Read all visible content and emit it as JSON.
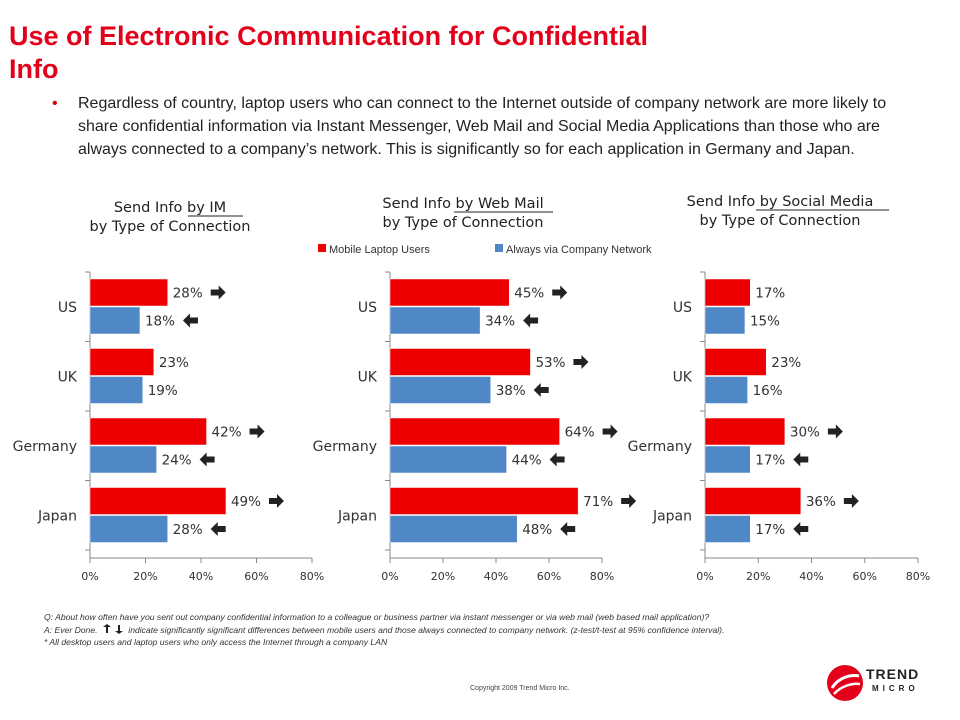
{
  "title": "Use of Electronic Communication for Confidential Info",
  "bullet": "Regardless of country, laptop users who can connect to the Internet outside of company network are more likely to share confidential information via Instant Messenger, Web Mail and Social Media Applications than those who are always connected to a company’s network. This is significantly so for each application in Germany and Japan.",
  "legend": [
    {
      "name": "Mobile Laptop Users",
      "color": "#ee0000"
    },
    {
      "name": "Always via Company Network",
      "color": "#4f87c7"
    }
  ],
  "chart_data": [
    {
      "type": "bar",
      "orientation": "horizontal",
      "title": [
        "Send Info by IM",
        "by Type of Connection"
      ],
      "categories": [
        "US",
        "UK",
        "Germany",
        "Japan"
      ],
      "series": [
        {
          "name": "Mobile Laptop Users",
          "values": [
            28,
            23,
            42,
            49
          ],
          "labels": [
            "28%",
            "23%",
            "42%",
            "49%"
          ],
          "arrows": [
            "right",
            "",
            "right",
            "right"
          ]
        },
        {
          "name": "Always via Company Network",
          "values": [
            18,
            19,
            24,
            28
          ],
          "labels": [
            "18%",
            "19%",
            "24%",
            "28%"
          ],
          "arrows": [
            "left",
            "",
            "left",
            "left"
          ]
        }
      ],
      "xlim": [
        0,
        80
      ],
      "xticks": [
        "0%",
        "20%",
        "40%",
        "60%",
        "80%"
      ]
    },
    {
      "type": "bar",
      "orientation": "horizontal",
      "title": [
        "Send Info by Web Mail",
        "by Type of Connection"
      ],
      "categories": [
        "US",
        "UK",
        "Germany",
        "Japan"
      ],
      "series": [
        {
          "name": "Mobile Laptop Users",
          "values": [
            45,
            53,
            64,
            71
          ],
          "labels": [
            "45%",
            "53%",
            "64%",
            "71%"
          ],
          "arrows": [
            "right",
            "right",
            "right",
            "right"
          ]
        },
        {
          "name": "Always via Company Network",
          "values": [
            34,
            38,
            44,
            48
          ],
          "labels": [
            "34%",
            "38%",
            "44%",
            "48%"
          ],
          "arrows": [
            "left",
            "left",
            "left",
            "left"
          ]
        }
      ],
      "xlim": [
        0,
        80
      ],
      "xticks": [
        "0%",
        "20%",
        "40%",
        "60%",
        "80%"
      ]
    },
    {
      "type": "bar",
      "orientation": "horizontal",
      "title": [
        "Send Info by Social Media",
        "by Type of Connection"
      ],
      "categories": [
        "US",
        "UK",
        "Germany",
        "Japan"
      ],
      "series": [
        {
          "name": "Mobile Laptop Users",
          "values": [
            17,
            23,
            30,
            36
          ],
          "labels": [
            "17%",
            "23%",
            "30%",
            "36%"
          ],
          "arrows": [
            "",
            "",
            "right",
            "right"
          ]
        },
        {
          "name": "Always via Company Network",
          "values": [
            15,
            16,
            17,
            17
          ],
          "labels": [
            "15%",
            "16%",
            "17%",
            "17%"
          ],
          "arrows": [
            "",
            "",
            "left",
            "left"
          ]
        }
      ],
      "xlim": [
        0,
        80
      ],
      "xticks": [
        "0%",
        "20%",
        "40%",
        "60%",
        "80%"
      ]
    }
  ],
  "footnotes": {
    "q": "Q: About how often have you sent out company confidential information to a colleague or business partner via instant messenger or via web mail (web based mail application)?",
    "a_prefix": "A: Ever Done.",
    "a_suffix": "indicate significantly significant differences between mobile users and those always connected to company network. (z-test/t-test at 95% confidence interval).",
    "star": "* All desktop users and laptop users who only access the Internet through a company LAN"
  },
  "copyright": "Copyright 2009   Trend Micro Inc.",
  "logo": {
    "name": "TREND",
    "sub": "MICRO"
  }
}
